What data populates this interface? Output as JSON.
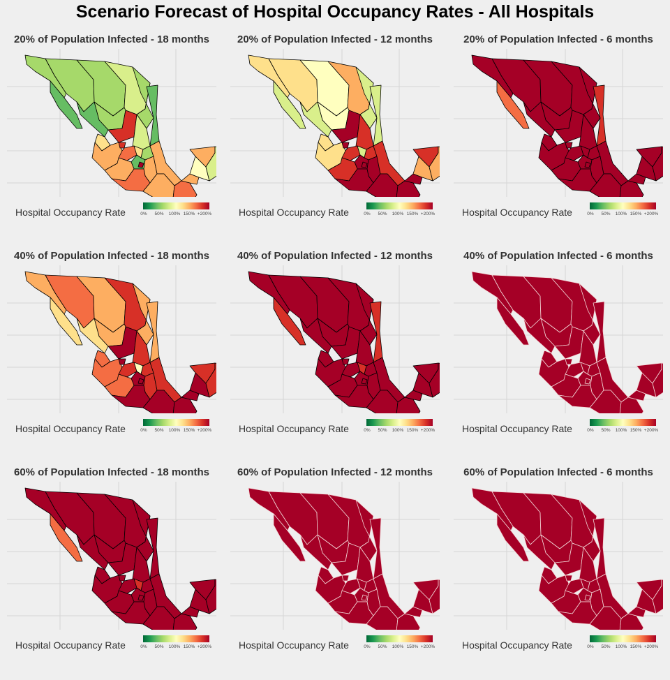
{
  "title": "Scenario Forecast of Hospital Occupancy Rates - All Hospitals",
  "legend": {
    "label": "Hospital Occupancy Rate",
    "ticks": [
      "0%",
      "50%",
      "100%",
      "150%",
      "+200%"
    ],
    "colors": [
      "#006837",
      "#1a9850",
      "#66bd63",
      "#a6d96a",
      "#d9ef8b",
      "#ffffbf",
      "#fee08b",
      "#fdae61",
      "#f46d43",
      "#d73027",
      "#a50026"
    ]
  },
  "panels": [
    {
      "title": "20% of Population Infected - 18 months",
      "border": "#000000",
      "fills": {
        "bcn": "#a6d96a",
        "bcs": "#66bd63",
        "son": "#a6d96a",
        "chh": "#a6d96a",
        "coa": "#d9ef8b",
        "nle": "#a6d96a",
        "tam": "#66bd63",
        "dur": "#a6d96a",
        "sin": "#66bd63",
        "zac": "#d73027",
        "slp": "#d9ef8b",
        "nay": "#fee08b",
        "jal": "#fdae61",
        "gto": "#f46d43",
        "ags": "#d73027",
        "qro": "#fee08b",
        "hgo": "#a6d96a",
        "mex": "#66bd63",
        "cdmx": "#a50026",
        "pue": "#fdae61",
        "ver": "#fdae61",
        "mic": "#fdae61",
        "gro": "#f46d43",
        "oax": "#fdae61",
        "chs": "#f46d43",
        "tab": "#fdae61",
        "cam": "#ffffbf",
        "yuc": "#fdae61",
        "roo": "#d9ef8b"
      }
    },
    {
      "title": "20% of Population Infected - 12 months",
      "border": "#000000",
      "fills": {
        "bcn": "#fee08b",
        "bcs": "#d9ef8b",
        "son": "#fee08b",
        "chh": "#ffffbf",
        "coa": "#fdae61",
        "nle": "#d9ef8b",
        "tam": "#d9ef8b",
        "dur": "#ffffbf",
        "sin": "#d9ef8b",
        "zac": "#a50026",
        "slp": "#d73027",
        "nay": "#fee08b",
        "jal": "#fee08b",
        "gto": "#d73027",
        "ags": "#a50026",
        "qro": "#d9ef8b",
        "hgo": "#d73027",
        "mex": "#a50026",
        "cdmx": "#a50026",
        "pue": "#a50026",
        "ver": "#d73027",
        "mic": "#d73027",
        "gro": "#a50026",
        "oax": "#a50026",
        "chs": "#a50026",
        "tab": "#a50026",
        "cam": "#fdae61",
        "yuc": "#d73027",
        "roo": "#fdae61"
      }
    },
    {
      "title": "20% of Population Infected - 6 months",
      "border": "#000000",
      "fills": {
        "bcn": "#a50026",
        "bcs": "#f46d43",
        "son": "#a50026",
        "chh": "#a50026",
        "coa": "#a50026",
        "nle": "#a50026",
        "tam": "#d73027",
        "dur": "#a50026",
        "sin": "#a50026",
        "zac": "#a50026",
        "slp": "#a50026",
        "nay": "#a50026",
        "jal": "#a50026",
        "gto": "#a50026",
        "ags": "#a50026",
        "qro": "#a50026",
        "hgo": "#a50026",
        "mex": "#a50026",
        "cdmx": "#a50026",
        "pue": "#a50026",
        "ver": "#a50026",
        "mic": "#a50026",
        "gro": "#a50026",
        "oax": "#a50026",
        "chs": "#a50026",
        "tab": "#a50026",
        "cam": "#a50026",
        "yuc": "#a50026",
        "roo": "#a50026"
      }
    },
    {
      "title": "40% of Population Infected - 18 months",
      "border": "#000000",
      "fills": {
        "bcn": "#fdae61",
        "bcs": "#fee08b",
        "son": "#f46d43",
        "chh": "#fdae61",
        "coa": "#d73027",
        "nle": "#fdae61",
        "tam": "#fdae61",
        "dur": "#fdae61",
        "sin": "#fee08b",
        "zac": "#a50026",
        "slp": "#d73027",
        "nay": "#f46d43",
        "jal": "#f46d43",
        "gto": "#d73027",
        "ags": "#a50026",
        "qro": "#ffffbf",
        "hgo": "#d73027",
        "mex": "#a50026",
        "cdmx": "#a50026",
        "pue": "#d73027",
        "ver": "#d73027",
        "mic": "#f46d43",
        "gro": "#a50026",
        "oax": "#a50026",
        "chs": "#a50026",
        "tab": "#a50026",
        "cam": "#a50026",
        "yuc": "#d73027",
        "roo": "#d73027"
      }
    },
    {
      "title": "40% of Population Infected - 12 months",
      "border": "#000000",
      "fills": {
        "bcn": "#a50026",
        "bcs": "#d73027",
        "son": "#a50026",
        "chh": "#a50026",
        "coa": "#a50026",
        "nle": "#a50026",
        "tam": "#d73027",
        "dur": "#a50026",
        "sin": "#a50026",
        "zac": "#a50026",
        "slp": "#a50026",
        "nay": "#a50026",
        "jal": "#a50026",
        "gto": "#a50026",
        "ags": "#a50026",
        "qro": "#d73027",
        "hgo": "#a50026",
        "mex": "#a50026",
        "cdmx": "#a50026",
        "pue": "#a50026",
        "ver": "#a50026",
        "mic": "#a50026",
        "gro": "#a50026",
        "oax": "#a50026",
        "chs": "#a50026",
        "tab": "#a50026",
        "cam": "#a50026",
        "yuc": "#a50026",
        "roo": "#a50026"
      }
    },
    {
      "title": "40% of Population Infected - 6 months",
      "border": "#f2d6d6",
      "fills": {
        "bcn": "#a50026",
        "bcs": "#a50026",
        "son": "#a50026",
        "chh": "#a50026",
        "coa": "#a50026",
        "nle": "#a50026",
        "tam": "#a50026",
        "dur": "#a50026",
        "sin": "#a50026",
        "zac": "#a50026",
        "slp": "#a50026",
        "nay": "#a50026",
        "jal": "#a50026",
        "gto": "#a50026",
        "ags": "#a50026",
        "qro": "#a50026",
        "hgo": "#a50026",
        "mex": "#a50026",
        "cdmx": "#a50026",
        "pue": "#a50026",
        "ver": "#a50026",
        "mic": "#a50026",
        "gro": "#a50026",
        "oax": "#a50026",
        "chs": "#a50026",
        "tab": "#a50026",
        "cam": "#a50026",
        "yuc": "#a50026",
        "roo": "#a50026"
      }
    },
    {
      "title": "60% of Population Infected - 18 months",
      "border": "#000000",
      "fills": {
        "bcn": "#a50026",
        "bcs": "#f46d43",
        "son": "#a50026",
        "chh": "#a50026",
        "coa": "#a50026",
        "nle": "#a50026",
        "tam": "#a50026",
        "dur": "#a50026",
        "sin": "#a50026",
        "zac": "#a50026",
        "slp": "#a50026",
        "nay": "#a50026",
        "jal": "#a50026",
        "gto": "#a50026",
        "ags": "#a50026",
        "qro": "#d73027",
        "hgo": "#a50026",
        "mex": "#a50026",
        "cdmx": "#a50026",
        "pue": "#a50026",
        "ver": "#a50026",
        "mic": "#a50026",
        "gro": "#a50026",
        "oax": "#a50026",
        "chs": "#a50026",
        "tab": "#a50026",
        "cam": "#a50026",
        "yuc": "#a50026",
        "roo": "#a50026"
      }
    },
    {
      "title": "60% of Population Infected - 12 months",
      "border": "#f2d6d6",
      "fills": {
        "bcn": "#a50026",
        "bcs": "#a50026",
        "son": "#a50026",
        "chh": "#a50026",
        "coa": "#a50026",
        "nle": "#a50026",
        "tam": "#a50026",
        "dur": "#a50026",
        "sin": "#a50026",
        "zac": "#a50026",
        "slp": "#a50026",
        "nay": "#a50026",
        "jal": "#a50026",
        "gto": "#a50026",
        "ags": "#a50026",
        "qro": "#a50026",
        "hgo": "#a50026",
        "mex": "#a50026",
        "cdmx": "#a50026",
        "pue": "#a50026",
        "ver": "#a50026",
        "mic": "#a50026",
        "gro": "#a50026",
        "oax": "#a50026",
        "chs": "#a50026",
        "tab": "#a50026",
        "cam": "#a50026",
        "yuc": "#a50026",
        "roo": "#a50026"
      }
    },
    {
      "title": "60% of Population Infected - 6 months",
      "border": "#f2d6d6",
      "fills": {
        "bcn": "#a50026",
        "bcs": "#a50026",
        "son": "#a50026",
        "chh": "#a50026",
        "coa": "#a50026",
        "nle": "#a50026",
        "tam": "#a50026",
        "dur": "#a50026",
        "sin": "#a50026",
        "zac": "#a50026",
        "slp": "#a50026",
        "nay": "#a50026",
        "jal": "#a50026",
        "gto": "#a50026",
        "ags": "#a50026",
        "qro": "#a50026",
        "hgo": "#a50026",
        "mex": "#a50026",
        "cdmx": "#a50026",
        "pue": "#a50026",
        "ver": "#a50026",
        "mic": "#a50026",
        "gro": "#a50026",
        "oax": "#a50026",
        "chs": "#a50026",
        "tab": "#a50026",
        "cam": "#a50026",
        "yuc": "#a50026",
        "roo": "#a50026"
      }
    }
  ]
}
